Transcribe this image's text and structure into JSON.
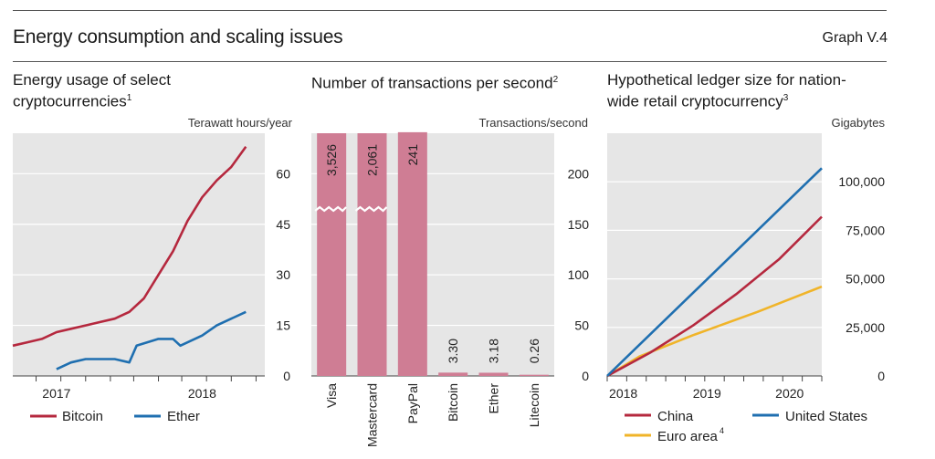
{
  "header": {
    "title": "Energy consumption and scaling issues",
    "graph_label": "Graph V.4"
  },
  "chart_data": [
    {
      "type": "line",
      "title": "Energy usage of select cryptocurrencies",
      "title_line1": "Energy usage of select",
      "title_line2": "cryptocurrencies",
      "footnote": "1",
      "unit": "Terawatt hours/year",
      "ylim": [
        0,
        72
      ],
      "yticks": [
        "0",
        "15",
        "30",
        "45",
        "60"
      ],
      "xticks": [
        "2017",
        "2018"
      ],
      "grid": true,
      "legend_position": "bottom-left",
      "colors": {
        "bitcoin": "#b5283e",
        "ether": "#1f6fb0"
      },
      "series": [
        {
          "name": "Bitcoin",
          "points": [
            [
              2016.5,
              9
            ],
            [
              2016.6,
              10
            ],
            [
              2016.7,
              11
            ],
            [
              2016.8,
              13
            ],
            [
              2016.9,
              14
            ],
            [
              2017.0,
              15
            ],
            [
              2017.1,
              16
            ],
            [
              2017.2,
              17
            ],
            [
              2017.3,
              19
            ],
            [
              2017.4,
              23
            ],
            [
              2017.5,
              30
            ],
            [
              2017.6,
              37
            ],
            [
              2017.7,
              46
            ],
            [
              2017.8,
              53
            ],
            [
              2017.9,
              58
            ],
            [
              2018.0,
              62
            ],
            [
              2018.1,
              68
            ]
          ]
        },
        {
          "name": "Ether",
          "points": [
            [
              2016.8,
              2
            ],
            [
              2016.9,
              4
            ],
            [
              2017.0,
              5
            ],
            [
              2017.1,
              5
            ],
            [
              2017.2,
              5
            ],
            [
              2017.3,
              4
            ],
            [
              2017.35,
              9
            ],
            [
              2017.5,
              11
            ],
            [
              2017.6,
              11
            ],
            [
              2017.65,
              9
            ],
            [
              2017.8,
              12
            ],
            [
              2017.9,
              15
            ],
            [
              2018.0,
              17
            ],
            [
              2018.1,
              19
            ]
          ]
        }
      ]
    },
    {
      "type": "bar",
      "title": "Number of transactions per second",
      "footnote": "2",
      "unit": "Transactions/second",
      "ylim": [
        0,
        240
      ],
      "yticks": [
        "0",
        "50",
        "100",
        "150",
        "200"
      ],
      "grid": true,
      "bar_color": "#cf7d94",
      "categories": [
        "Visa",
        "Mastercard",
        "PayPal",
        "Bitcoin",
        "Ether",
        "Litecoin"
      ],
      "values": [
        3526,
        2061,
        241,
        3.3,
        3.18,
        0.26
      ],
      "value_labels": [
        "3,526",
        "2,061",
        "241",
        "3.30",
        "3.18",
        "0.26"
      ],
      "axis_break": [
        true,
        true,
        false,
        false,
        false,
        false
      ]
    },
    {
      "type": "line",
      "title": "Hypothetical ledger size for nation-wide retail cryptocurrency",
      "title_line1": "Hypothetical ledger size for nation-",
      "title_line2": "wide retail cryptocurrency",
      "footnote": "3",
      "unit": "Gigabytes",
      "ylim": [
        0,
        125000
      ],
      "yticks": [
        "0",
        "25,000",
        "50,000",
        "75,000",
        "100,000"
      ],
      "xticks": [
        "2018",
        "2019",
        "2020"
      ],
      "grid": true,
      "legend_position": "bottom",
      "colors": {
        "china": "#b5283e",
        "us": "#1f6fb0",
        "euro": "#f0b429"
      },
      "series": [
        {
          "name": "China",
          "points": [
            [
              2018.0,
              0
            ],
            [
              2018.4,
              12000
            ],
            [
              2018.8,
              26000
            ],
            [
              2019.2,
              42000
            ],
            [
              2019.6,
              60000
            ],
            [
              2020.0,
              82000
            ]
          ]
        },
        {
          "name": "United States",
          "points": [
            [
              2018.0,
              0
            ],
            [
              2020.0,
              107000
            ]
          ]
        },
        {
          "name": "Euro area",
          "footnote": "4",
          "points": [
            [
              2018.0,
              0
            ],
            [
              2018.3,
              10000
            ],
            [
              2018.8,
              21000
            ],
            [
              2019.4,
              33000
            ],
            [
              2020.0,
              46000
            ]
          ]
        }
      ]
    }
  ]
}
